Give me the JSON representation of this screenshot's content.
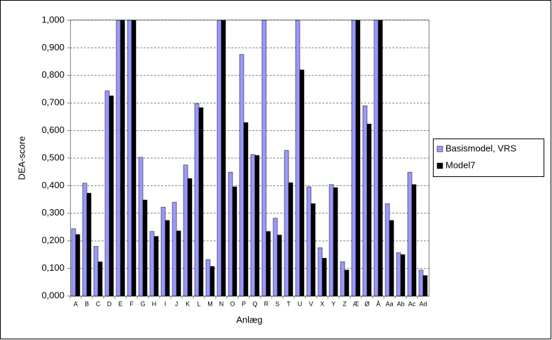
{
  "chart_data": {
    "type": "bar",
    "x_label": "Anlæg",
    "y_label": "DEA-score",
    "categories": [
      "A",
      "B",
      "C",
      "D",
      "E",
      "F",
      "G",
      "H",
      "I",
      "J",
      "K",
      "L",
      "M",
      "N",
      "O",
      "P",
      "Q",
      "R",
      "S",
      "T",
      "U",
      "V",
      "X",
      "Y",
      "Z",
      "Æ",
      "Ø",
      "Å",
      "Aa",
      "Ab",
      "Ac",
      "Ad"
    ],
    "series": [
      {
        "name": "Basismodel, VRS",
        "color": "#9999ff",
        "values": [
          0.244,
          0.409,
          0.18,
          0.744,
          1,
          1,
          0.503,
          0.234,
          0.322,
          0.34,
          0.475,
          0.698,
          0.132,
          1,
          0.449,
          0.876,
          0.513,
          1,
          0.282,
          0.528,
          1,
          0.396,
          0.175,
          0.404,
          0.124,
          1,
          0.69,
          1,
          0.335,
          0.157,
          0.449,
          0.094
        ]
      },
      {
        "name": "Model7",
        "color": "#000000",
        "values": [
          0.223,
          0.373,
          0.124,
          0.726,
          1,
          1,
          0.348,
          0.216,
          0.274,
          0.236,
          0.426,
          0.683,
          0.107,
          1,
          0.396,
          0.629,
          0.51,
          0.234,
          0.221,
          0.411,
          0.82,
          0.335,
          0.137,
          0.393,
          0.094,
          1,
          0.624,
          1,
          0.274,
          0.15,
          0.404,
          0.074
        ]
      }
    ],
    "ylim": [
      0,
      1
    ],
    "yticks": [
      {
        "value": 0,
        "label": "0,000"
      },
      {
        "value": 0.1,
        "label": "0,100"
      },
      {
        "value": 0.2,
        "label": "0,200"
      },
      {
        "value": 0.3,
        "label": "0,300"
      },
      {
        "value": 0.4,
        "label": "0,400"
      },
      {
        "value": 0.5,
        "label": "0,500"
      },
      {
        "value": 0.6,
        "label": "0,600"
      },
      {
        "value": 0.7,
        "label": "0,700"
      },
      {
        "value": 0.8,
        "label": "0,800"
      },
      {
        "value": 0.9,
        "label": "0,900"
      },
      {
        "value": 1,
        "label": "1,000"
      }
    ],
    "grid": true,
    "legend": "right"
  }
}
